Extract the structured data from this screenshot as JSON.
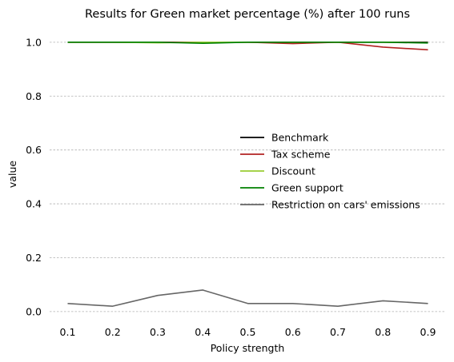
{
  "chart_data": {
    "type": "line",
    "title": "Results for Green market percentage (%) after 100 runs",
    "xlabel": "Policy strength",
    "ylabel": "value",
    "x": [
      0.1,
      0.2,
      0.3,
      0.4,
      0.5,
      0.6,
      0.7,
      0.8,
      0.9
    ],
    "x_tick_labels": [
      "0.1",
      "0.2",
      "0.3",
      "0.4",
      "0.5",
      "0.6",
      "0.7",
      "0.8",
      "0.9"
    ],
    "y_ticks": [
      0.0,
      0.2,
      0.4,
      0.6,
      0.8,
      1.0
    ],
    "y_tick_labels": [
      "0.0",
      "0.2",
      "0.4",
      "0.6",
      "0.8",
      "1.0"
    ],
    "ylim": [
      -0.03,
      1.05
    ],
    "xlim": [
      0.06,
      0.94
    ],
    "grid": "horizontal dashed",
    "legend_position": "center-right",
    "series": [
      {
        "name": "Benchmark",
        "color": "#000000",
        "values": [
          1.0,
          1.0,
          1.0,
          1.0,
          1.0,
          1.0,
          1.0,
          1.0,
          1.0
        ]
      },
      {
        "name": "Tax scheme",
        "color": "#b22222",
        "values": [
          1.0,
          1.0,
          1.0,
          1.0,
          1.0,
          0.995,
          1.0,
          0.982,
          0.972
        ]
      },
      {
        "name": "Discount",
        "color": "#9acd32",
        "values": [
          1.0,
          1.0,
          0.998,
          1.0,
          1.0,
          1.0,
          1.0,
          1.0,
          0.998
        ]
      },
      {
        "name": "Green support",
        "color": "#008000",
        "values": [
          1.0,
          1.0,
          1.0,
          0.996,
          1.0,
          1.0,
          1.0,
          1.0,
          0.997
        ]
      },
      {
        "name": "Restriction on cars' emissions",
        "color": "#666666",
        "values": [
          0.03,
          0.02,
          0.06,
          0.08,
          0.03,
          0.03,
          0.02,
          0.04,
          0.03
        ]
      }
    ]
  }
}
